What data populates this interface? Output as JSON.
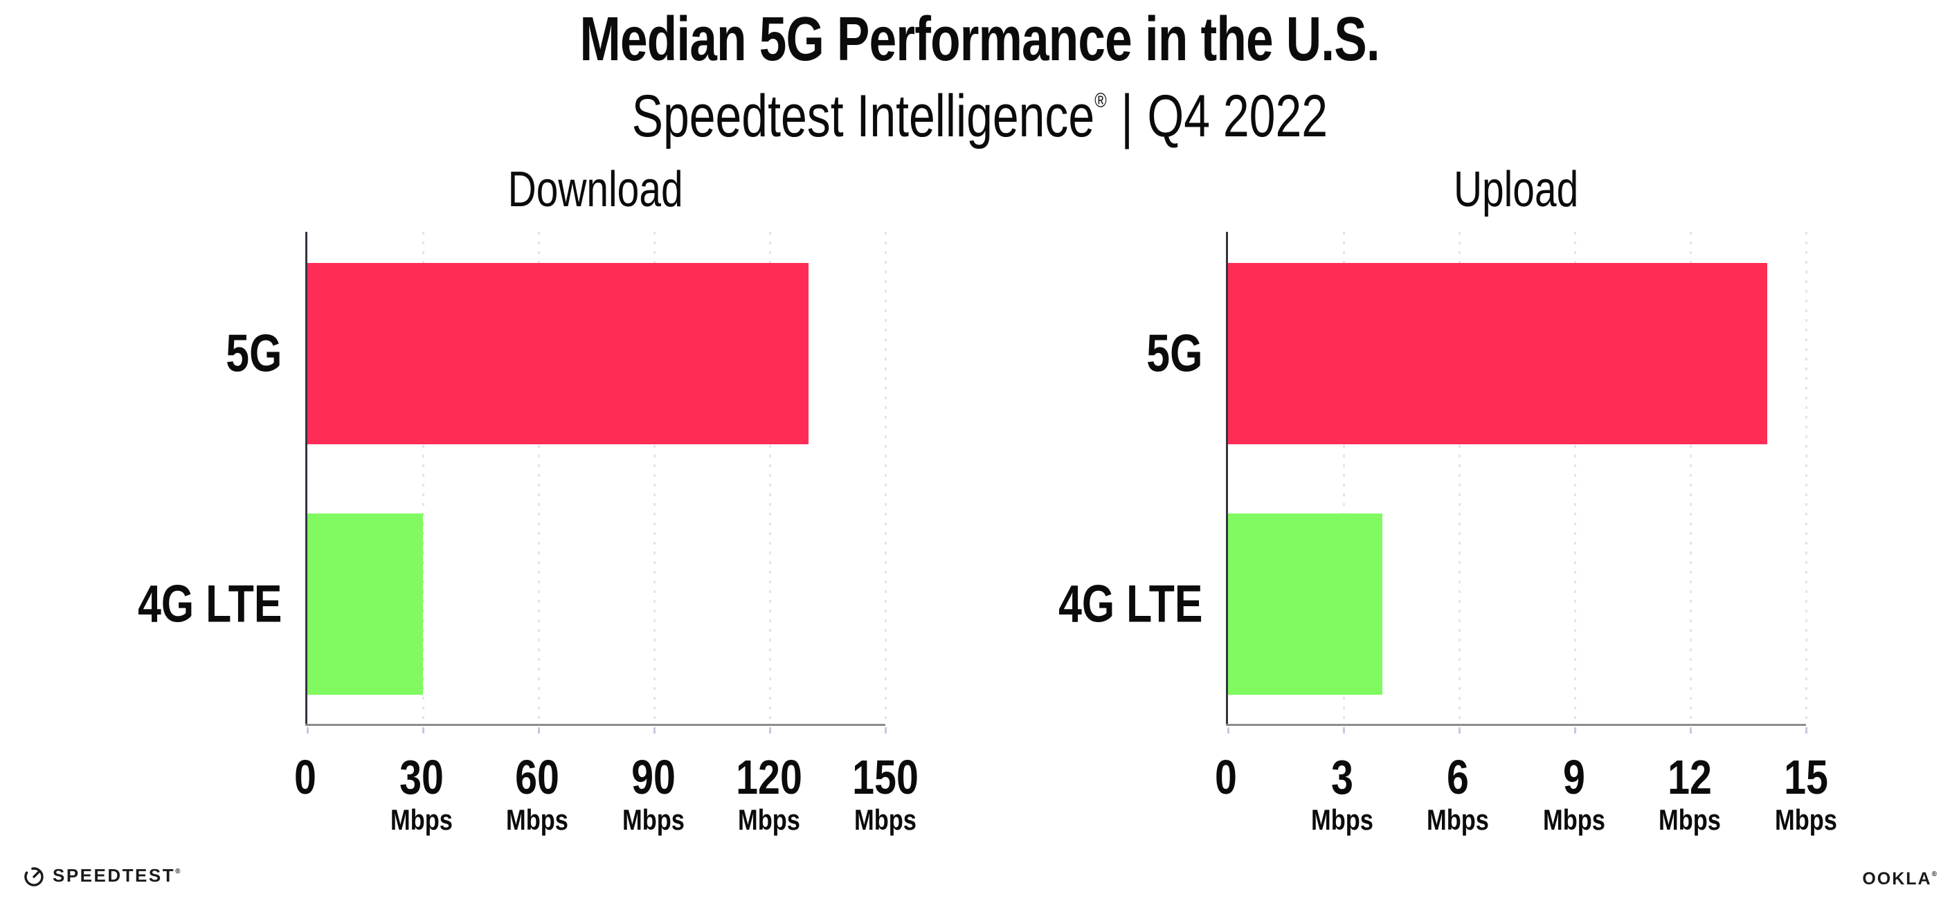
{
  "title": "Median 5G Performance in the U.S.",
  "subtitle": {
    "brand": "Speedtest Intelligence",
    "reg": "®",
    "separator": "|",
    "period": "Q4 2022"
  },
  "footer": {
    "speedtest_wordmark": "SPEEDTEST",
    "speedtest_reg": "®",
    "ookla_wordmark": "OOKLA",
    "ookla_reg": "®"
  },
  "colors": {
    "bar_5g": "#ff2d56",
    "bar_4g_lte": "#80fa60",
    "grid": "#e3e3ed",
    "axis_line": "#8c8c8c",
    "tick": "#c5c8dd",
    "spine": "#34343f",
    "text": "#0b0b0b"
  },
  "chart_data": [
    {
      "type": "bar",
      "orientation": "horizontal",
      "title": "Download",
      "categories": [
        "5G",
        "4G LTE"
      ],
      "values": [
        130,
        30
      ],
      "unit": "Mbps",
      "xlim": [
        0,
        150
      ],
      "xticks": [
        0,
        30,
        60,
        90,
        120,
        150
      ],
      "series_colors": [
        "#ff2d56",
        "#80fa60"
      ],
      "grid": "vertical-dotted",
      "legend": "none"
    },
    {
      "type": "bar",
      "orientation": "horizontal",
      "title": "Upload",
      "categories": [
        "5G",
        "4G LTE"
      ],
      "values": [
        14,
        4
      ],
      "unit": "Mbps",
      "xlim": [
        0,
        15
      ],
      "xticks": [
        0,
        3,
        6,
        9,
        12,
        15
      ],
      "series_colors": [
        "#ff2d56",
        "#80fa60"
      ],
      "grid": "vertical-dotted",
      "legend": "none"
    }
  ]
}
